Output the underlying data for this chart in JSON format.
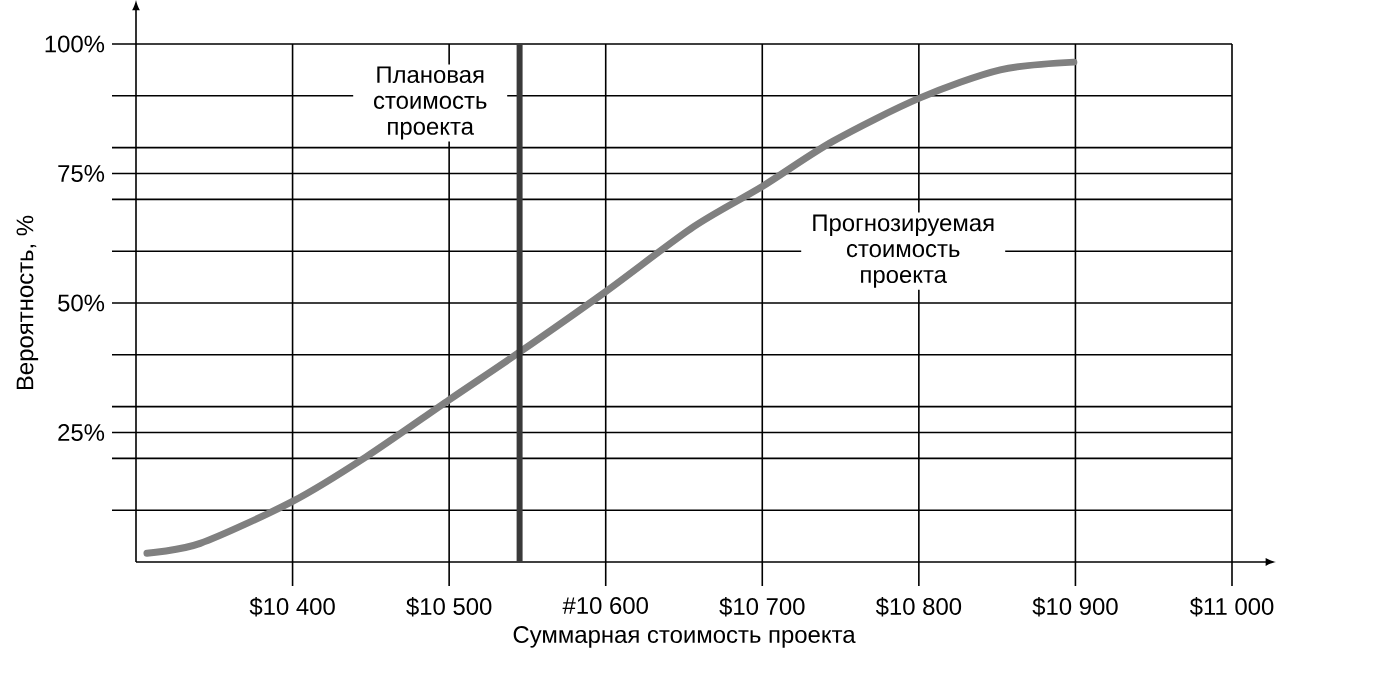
{
  "chart_data": {
    "type": "line",
    "xlabel": "Суммарная стоимость проекта",
    "ylabel": "Вероятность, %",
    "x": [
      10307,
      10341,
      10400,
      10447,
      10500,
      10544,
      10600,
      10656,
      10700,
      10745,
      10800,
      10852,
      10899
    ],
    "series": [
      {
        "color": "#808080",
        "values": [
          1.7,
          3.6,
          11.7,
          20.3,
          31.3,
          40.3,
          52.2,
          64.7,
          72.5,
          81.2,
          89.5,
          95,
          96.5
        ]
      }
    ],
    "xlim": [
      10300,
      11000
    ],
    "ylim": [
      0,
      100
    ],
    "xticks": [
      {
        "value": 10400,
        "label": "$10 400"
      },
      {
        "value": 10500,
        "label": "$10 500"
      },
      {
        "value": 10600,
        "label": "#10 600"
      },
      {
        "value": 10700,
        "label": "$10 700"
      },
      {
        "value": 10800,
        "label": "$10 800"
      },
      {
        "value": 10900,
        "label": "$10 900"
      },
      {
        "value": 11000,
        "label": "$11 000"
      }
    ],
    "yticks": [
      {
        "value": 10,
        "label": null
      },
      {
        "value": 20,
        "label": null
      },
      {
        "value": 25,
        "label": "25%"
      },
      {
        "value": 30,
        "label": null
      },
      {
        "value": 40,
        "label": null
      },
      {
        "value": 50,
        "label": "50%"
      },
      {
        "value": 60,
        "label": null
      },
      {
        "value": 70,
        "label": null
      },
      {
        "value": 75,
        "label": "75%"
      },
      {
        "value": 80,
        "label": null
      },
      {
        "value": 90,
        "label": null
      },
      {
        "value": 100,
        "label": "100%"
      }
    ],
    "grid": true,
    "marker": "none",
    "line_style": "solid",
    "ref_lines": [
      {
        "axis": "x",
        "value": 10545,
        "label": "Плановая стоимость проекта",
        "color": "#3a3a3a"
      }
    ],
    "annotations": [
      "Прогнозируемая стоимость проекта"
    ]
  }
}
